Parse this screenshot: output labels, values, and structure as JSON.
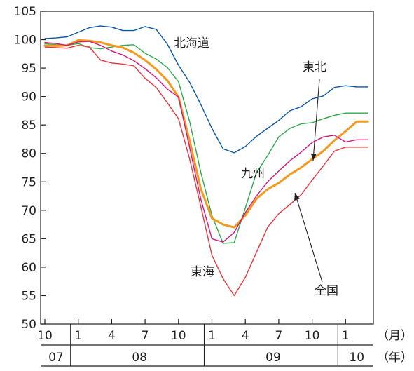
{
  "chart_data": {
    "type": "line",
    "title": "",
    "xlabel": "",
    "ylabel": "",
    "ylim": [
      50,
      105
    ],
    "yticks": [
      50,
      55,
      60,
      65,
      70,
      75,
      80,
      85,
      90,
      95,
      100,
      105
    ],
    "x": [
      0,
      1,
      2,
      3,
      4,
      5,
      6,
      7,
      8,
      9,
      10,
      11,
      12,
      13,
      14,
      15,
      16,
      17,
      18,
      19,
      20,
      21,
      22,
      23,
      24,
      25,
      26,
      27,
      28,
      29
    ],
    "x_month_ticks": [
      {
        "x": 0,
        "label": "10"
      },
      {
        "x": 3,
        "label": "1"
      },
      {
        "x": 6,
        "label": "4"
      },
      {
        "x": 9,
        "label": "7"
      },
      {
        "x": 12,
        "label": "10"
      },
      {
        "x": 15,
        "label": "1"
      },
      {
        "x": 18,
        "label": "4"
      },
      {
        "x": 21,
        "label": "7"
      },
      {
        "x": 24,
        "label": "10"
      },
      {
        "x": 27,
        "label": "1"
      }
    ],
    "x_year_labels": [
      {
        "from": 0,
        "to": 2,
        "label": "07"
      },
      {
        "from": 3,
        "to": 14,
        "label": "08"
      },
      {
        "from": 15,
        "to": 26,
        "label": "09"
      },
      {
        "from": 27,
        "to": 29,
        "label": "10"
      }
    ],
    "x_year_dividers": [
      2.5,
      14.5,
      26.5
    ],
    "month_unit": "（月）",
    "year_unit": "（年）",
    "grid": false,
    "series": [
      {
        "name": "北海道",
        "color": "#0a57a6",
        "values": [
          100.2,
          100.3,
          100.5,
          101.3,
          102.1,
          102.4,
          102.2,
          101.6,
          101.6,
          102.3,
          101.8,
          99.2,
          95.5,
          92.5,
          88.6,
          84.4,
          80.8,
          80.1,
          81.2,
          83.0,
          84.4,
          85.8,
          87.5,
          88.2,
          89.6,
          90.1,
          91.6,
          91.9,
          91.7,
          91.7
        ]
      },
      {
        "name": "東北",
        "color": "#2eab4b",
        "values": [
          99.3,
          99.1,
          99.0,
          99.3,
          98.6,
          98.4,
          98.7,
          99.0,
          99.1,
          97.6,
          96.6,
          95.1,
          92.6,
          85.6,
          76.7,
          69.1,
          64.2,
          64.3,
          70.4,
          76.6,
          79.6,
          82.9,
          84.4,
          85.2,
          85.4,
          86.1,
          86.7,
          87.1,
          87.1,
          87.1
        ]
      },
      {
        "name": "全国",
        "color": "#f39a1e",
        "values": [
          99.0,
          98.9,
          99.0,
          99.9,
          99.8,
          99.5,
          99.0,
          98.6,
          97.7,
          96.4,
          94.8,
          92.8,
          89.9,
          82.2,
          73.8,
          68.6,
          67.5,
          67.0,
          69.1,
          72.0,
          73.7,
          74.8,
          76.3,
          77.5,
          79.0,
          80.4,
          82.3,
          83.9,
          85.6,
          85.6
        ]
      },
      {
        "name": "九州",
        "color": "#d4177e",
        "values": [
          99.5,
          99.3,
          99.0,
          99.6,
          99.7,
          99.0,
          98.0,
          97.3,
          96.3,
          94.9,
          93.3,
          91.3,
          89.9,
          81.0,
          72.0,
          65.0,
          64.4,
          66.1,
          69.6,
          72.5,
          75.0,
          76.9,
          78.7,
          80.2,
          81.9,
          82.9,
          83.2,
          82.0,
          82.4,
          82.4
        ]
      },
      {
        "name": "東海",
        "color": "#e8343a",
        "values": [
          98.7,
          98.6,
          98.5,
          99.0,
          98.7,
          96.4,
          95.9,
          95.7,
          95.4,
          93.2,
          91.6,
          88.9,
          86.1,
          79.0,
          70.7,
          62.1,
          58.0,
          55.0,
          58.2,
          62.6,
          67.0,
          69.4,
          71.0,
          72.7,
          75.3,
          77.8,
          80.4,
          81.1,
          81.1,
          81.1
        ]
      }
    ],
    "annotations": [
      {
        "text": "北海道",
        "series": "北海道"
      },
      {
        "text": "東北",
        "series": "東北"
      },
      {
        "text": "九州",
        "series": "九州"
      },
      {
        "text": "東海",
        "series": "東海"
      },
      {
        "text": "全国",
        "series": "全国"
      }
    ]
  }
}
